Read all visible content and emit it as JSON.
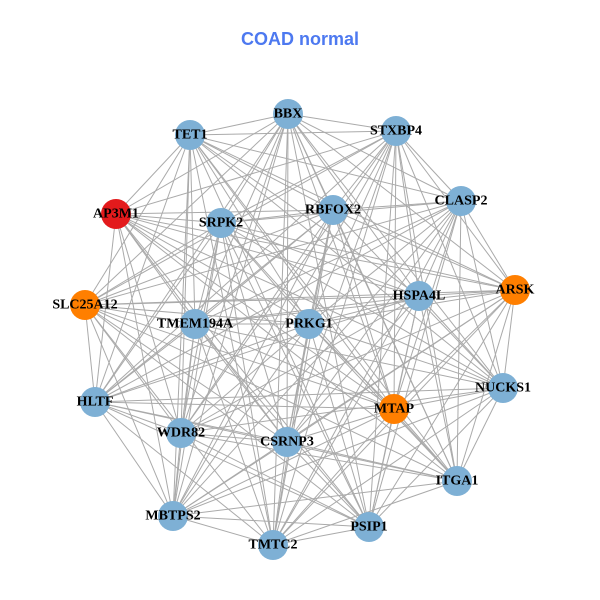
{
  "title": "COAD normal",
  "colors": {
    "default": "#7eb0d5",
    "red": "#e31a1c",
    "orange": "#ff7f00",
    "edge": "#aaaaaa",
    "title": "#4d79f0"
  },
  "nodes": [
    {
      "id": "BBX",
      "color": "default"
    },
    {
      "id": "TET1",
      "color": "default"
    },
    {
      "id": "STXBP4",
      "color": "default"
    },
    {
      "id": "CLASP2",
      "color": "default"
    },
    {
      "id": "AP3M1",
      "color": "red"
    },
    {
      "id": "SRPK2",
      "color": "default"
    },
    {
      "id": "RBFOX2",
      "color": "default"
    },
    {
      "id": "ARSK",
      "color": "orange"
    },
    {
      "id": "HSPA4L",
      "color": "default"
    },
    {
      "id": "SLC25A12",
      "color": "orange"
    },
    {
      "id": "TMEM194A",
      "color": "default"
    },
    {
      "id": "PRKG1",
      "color": "default"
    },
    {
      "id": "NUCKS1",
      "color": "default"
    },
    {
      "id": "HLTF",
      "color": "default"
    },
    {
      "id": "MTAP",
      "color": "orange"
    },
    {
      "id": "WDR82",
      "color": "default"
    },
    {
      "id": "CSRNP3",
      "color": "default"
    },
    {
      "id": "ITGA1",
      "color": "default"
    },
    {
      "id": "MBTPS2",
      "color": "default"
    },
    {
      "id": "PSIP1",
      "color": "default"
    },
    {
      "id": "TMTC2",
      "color": "default"
    }
  ]
}
